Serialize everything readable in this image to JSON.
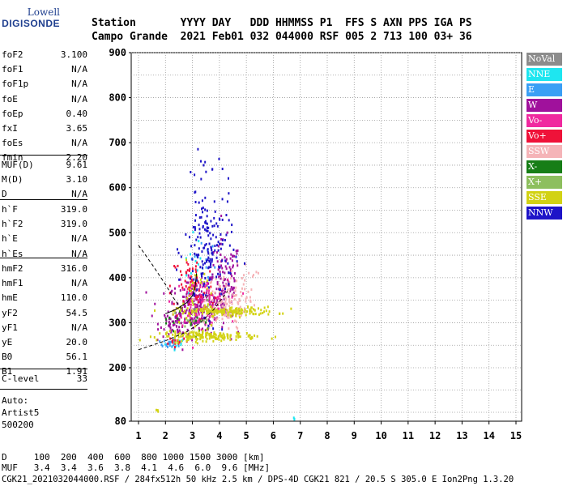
{
  "logo": {
    "line1": "Lowell",
    "line2": "DIGISONDE"
  },
  "header": {
    "line1": "Station       YYYY DAY   DDD HHMMSS P1  FFS S AXN PPS IGA PS",
    "line2": "Campo Grande  2021 Feb01 032 044000 RSF 005 2 713 100 03+ 36"
  },
  "params_group1": [
    {
      "k": "foF2",
      "v": "3.100"
    },
    {
      "k": "foF1",
      "v": "N/A"
    },
    {
      "k": "foF1p",
      "v": "N/A"
    },
    {
      "k": "foE",
      "v": "N/A"
    },
    {
      "k": "foEp",
      "v": "0.40"
    },
    {
      "k": "fxI",
      "v": "3.65"
    },
    {
      "k": "foEs",
      "v": "N/A"
    },
    {
      "k": "fmin",
      "v": "2.20"
    }
  ],
  "params_group2": [
    {
      "k": "MUF(D)",
      "v": "9.61"
    },
    {
      "k": "M(D)",
      "v": "3.10"
    },
    {
      "k": "D",
      "v": "N/A"
    }
  ],
  "params_group3": [
    {
      "k": "h`F",
      "v": "319.0"
    },
    {
      "k": "h`F2",
      "v": "319.0"
    },
    {
      "k": "h`E",
      "v": "N/A"
    },
    {
      "k": "h`Es",
      "v": "N/A"
    }
  ],
  "params_group4": [
    {
      "k": "hmF2",
      "v": "316.0"
    },
    {
      "k": "hmF1",
      "v": "N/A"
    },
    {
      "k": "hmE",
      "v": "110.0"
    },
    {
      "k": "yF2",
      "v": "54.5"
    },
    {
      "k": "yF1",
      "v": "N/A"
    },
    {
      "k": "yE",
      "v": "20.0"
    },
    {
      "k": "B0",
      "v": "56.1"
    },
    {
      "k": "B1",
      "v": "1.91"
    }
  ],
  "params_group5": [
    {
      "k": "C-level",
      "v": "33"
    }
  ],
  "auto": {
    "line1": "Auto:",
    "line2": "Artist5",
    "line3": "500200"
  },
  "legend": [
    {
      "label": "NoVal",
      "color": "#8c8c8c"
    },
    {
      "label": "NNE",
      "color": "#1ee6f0"
    },
    {
      "label": "E",
      "color": "#3a9ff5"
    },
    {
      "label": "W",
      "color": "#a0119c"
    },
    {
      "label": "Vo-",
      "color": "#f0299f"
    },
    {
      "label": "Vo+",
      "color": "#ef1239"
    },
    {
      "label": "SSW",
      "color": "#f5b4b8"
    },
    {
      "label": "X-",
      "color": "#177e17"
    },
    {
      "label": "X+",
      "color": "#8dbf5e"
    },
    {
      "label": "SSE",
      "color": "#d2d214"
    },
    {
      "label": "NNW",
      "color": "#1e14c8"
    }
  ],
  "footer": {
    "d_line": "D     100  200  400  600  800 1000 1500 3000 [km]",
    "muf_line": "MUF   3.4  3.4  3.6  3.8  4.1  4.6  6.0  9.6 [MHz]",
    "file_line": "CGK21_2021032044000.RSF / 284fx512h 50 kHz 2.5 km / DPS-4D CGK21 821 / 20.5 S 305.0 E Ion2Png 1.3.20"
  },
  "chart_data": {
    "type": "scatter",
    "x_ticks": [
      1,
      2,
      3,
      4,
      5,
      6,
      7,
      8,
      9,
      10,
      11,
      12,
      13,
      14,
      15
    ],
    "y_ticks": [
      80,
      200,
      300,
      400,
      500,
      600,
      700,
      800,
      900
    ],
    "xlim": [
      1,
      15
    ],
    "ylim": [
      80,
      900
    ],
    "grid": true,
    "grid_minor_y": 50,
    "legend_position": "right",
    "series": [
      {
        "name": "NoVal",
        "clusters": []
      },
      {
        "name": "NNE",
        "clusters": [
          {
            "cx": 2.4,
            "cy": 255,
            "sx": 0.2,
            "sy": 6,
            "n": 20
          },
          {
            "cx": 3.1,
            "cy": 420,
            "sx": 0.2,
            "sy": 40,
            "n": 14
          },
          {
            "cx": 6.8,
            "cy": 88,
            "sx": 0.02,
            "sy": 5,
            "n": 3
          }
        ]
      },
      {
        "name": "E",
        "clusters": [
          {
            "cx": 2.2,
            "cy": 252,
            "sx": 0.2,
            "sy": 5,
            "n": 18
          },
          {
            "cx": 3.3,
            "cy": 410,
            "sx": 0.3,
            "sy": 40,
            "n": 14
          }
        ]
      },
      {
        "name": "W",
        "clusters": [
          {
            "cx": 3.2,
            "cy": 335,
            "sx": 0.55,
            "sy": 28,
            "n": 260
          },
          {
            "cx": 4.2,
            "cy": 390,
            "sx": 0.3,
            "sy": 45,
            "n": 110
          },
          {
            "cx": 2.5,
            "cy": 300,
            "sx": 0.35,
            "sy": 15,
            "n": 60
          }
        ]
      },
      {
        "name": "Vo-",
        "clusters": [
          {
            "cx": 3.3,
            "cy": 345,
            "sx": 0.5,
            "sy": 25,
            "n": 90
          }
        ]
      },
      {
        "name": "Vo+",
        "clusters": [
          {
            "cx": 3.0,
            "cy": 380,
            "sx": 0.4,
            "sy": 40,
            "n": 60
          },
          {
            "cx": 2.4,
            "cy": 260,
            "sx": 0.25,
            "sy": 5,
            "n": 15
          }
        ]
      },
      {
        "name": "SSW",
        "clusters": [
          {
            "cx": 4.2,
            "cy": 345,
            "sx": 0.4,
            "sy": 30,
            "n": 120
          },
          {
            "cx": 5.0,
            "cy": 385,
            "sx": 0.2,
            "sy": 25,
            "n": 20
          }
        ]
      },
      {
        "name": "X-",
        "clusters": [
          {
            "cx": 2.8,
            "cy": 300,
            "sx": 0.4,
            "sy": 20,
            "n": 20
          }
        ]
      },
      {
        "name": "X+",
        "clusters": [
          {
            "cx": 3.0,
            "cy": 310,
            "sx": 0.4,
            "sy": 20,
            "n": 15
          }
        ]
      },
      {
        "name": "SSE",
        "clusters": [
          {
            "cx": 4.3,
            "cy": 325,
            "sx": 0.9,
            "sy": 5,
            "n": 160
          },
          {
            "cx": 3.6,
            "cy": 270,
            "sx": 0.9,
            "sy": 5,
            "n": 170
          },
          {
            "cx": 3.1,
            "cy": 350,
            "sx": 0.3,
            "sy": 40,
            "n": 40
          },
          {
            "cx": 1.7,
            "cy": 103,
            "sx": 0.04,
            "sy": 2,
            "n": 4
          }
        ]
      },
      {
        "name": "NNW",
        "clusters": [
          {
            "cx": 3.6,
            "cy": 460,
            "sx": 0.45,
            "sy": 70,
            "n": 170
          },
          {
            "cx": 3.3,
            "cy": 620,
            "sx": 0.2,
            "sy": 25,
            "n": 10
          }
        ]
      }
    ],
    "profile_curves": [
      {
        "name": "virtual-height-model",
        "style": "dashed",
        "points": [
          [
            1.0,
            472
          ],
          [
            1.5,
            430
          ],
          [
            2.0,
            385
          ],
          [
            2.3,
            355
          ],
          [
            2.6,
            330
          ]
        ]
      },
      {
        "name": "virtual-height-model-lower",
        "style": "dashed",
        "points": [
          [
            1.0,
            240
          ],
          [
            2.0,
            260
          ],
          [
            2.8,
            280
          ],
          [
            3.3,
            300
          ],
          [
            3.8,
            330
          ],
          [
            4.3,
            370
          ]
        ]
      },
      {
        "name": "trace-fit",
        "style": "solid",
        "points": [
          [
            2.0,
            320
          ],
          [
            2.4,
            330
          ],
          [
            2.8,
            345
          ],
          [
            3.0,
            360
          ],
          [
            3.1,
            380
          ],
          [
            3.15,
            410
          ]
        ]
      }
    ]
  }
}
